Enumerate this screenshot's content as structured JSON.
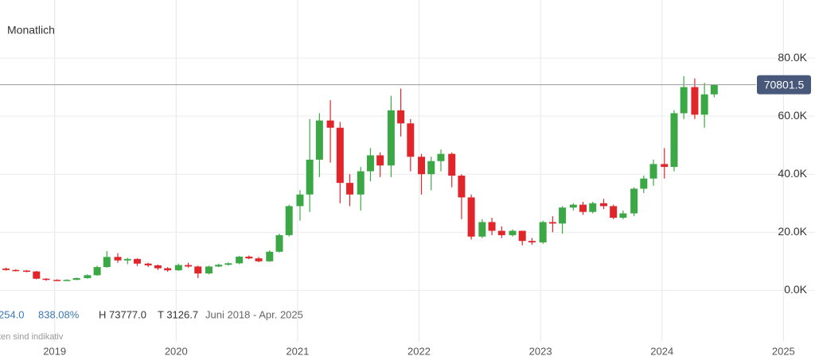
{
  "chart_data": {
    "type": "candlestick",
    "title": "Monatlich",
    "stats": [
      "254.0",
      "838.08%",
      "H 73777.0",
      "T 3126.7",
      "Juni 2018 - Apr. 2025"
    ],
    "note": "ten sind indikativ",
    "last_price": 70801.5,
    "last_price_label": "70801.5",
    "up_color": "#3ba845",
    "down_color": "#e0262b",
    "grid": true,
    "xlim": [
      2018.55,
      2025.26
    ],
    "xticks": [
      2019,
      2020,
      2021,
      2022,
      2023,
      2024,
      2025
    ],
    "ylim": [
      -24000,
      100000
    ],
    "yticks": [
      {
        "value": 0,
        "label": "0.0K"
      },
      {
        "value": 20000,
        "label": "20.0K"
      },
      {
        "value": 40000,
        "label": "40.0K"
      },
      {
        "value": 60000,
        "label": "60.0K"
      },
      {
        "value": 80000,
        "label": "80.0K"
      }
    ],
    "x": [
      2018.6,
      2018.68,
      2018.77,
      2018.85,
      2018.93,
      2019.02,
      2019.1,
      2019.18,
      2019.27,
      2019.35,
      2019.43,
      2019.52,
      2019.6,
      2019.68,
      2019.77,
      2019.85,
      2019.93,
      2020.02,
      2020.1,
      2020.18,
      2020.27,
      2020.35,
      2020.43,
      2020.52,
      2020.6,
      2020.68,
      2020.77,
      2020.85,
      2020.93,
      2021.02,
      2021.1,
      2021.18,
      2021.27,
      2021.35,
      2021.43,
      2021.52,
      2021.6,
      2021.68,
      2021.77,
      2021.85,
      2021.93,
      2022.02,
      2022.1,
      2022.18,
      2022.27,
      2022.35,
      2022.43,
      2022.52,
      2022.6,
      2022.68,
      2022.77,
      2022.85,
      2022.93,
      2023.02,
      2023.1,
      2023.18,
      2023.27,
      2023.35,
      2023.43,
      2023.52,
      2023.6,
      2023.68,
      2023.77,
      2023.85,
      2023.93,
      2024.02,
      2024.1,
      2024.18,
      2024.27,
      2024.35,
      2024.43
    ],
    "open": [
      7500,
      7000,
      6800,
      6500,
      4000,
      3600,
      3400,
      3600,
      4200,
      5200,
      8000,
      11500,
      10300,
      10800,
      9200,
      8600,
      7600,
      6900,
      8700,
      8200,
      5800,
      8200,
      8800,
      9300,
      11600,
      11000,
      10000,
      13300,
      19000,
      29000,
      33000,
      45000,
      58500,
      56000,
      37000,
      33000,
      41000,
      46500,
      43000,
      62000,
      57500,
      46000,
      40000,
      44500,
      47000,
      39500,
      32000,
      18500,
      23500,
      20500,
      19000,
      20500,
      17000,
      16500,
      23500,
      23000,
      28500,
      29500,
      27000,
      30000,
      29000,
      25000,
      26500,
      35000,
      38500,
      43500,
      42500,
      61000,
      70000,
      60500,
      67500
    ],
    "high": [
      7800,
      7300,
      7000,
      6700,
      4200,
      3800,
      3800,
      4400,
      5500,
      8500,
      13500,
      12800,
      11200,
      11000,
      9500,
      8900,
      8000,
      9200,
      9500,
      8500,
      8500,
      9200,
      9600,
      11800,
      12000,
      11500,
      13800,
      19500,
      29500,
      34500,
      59000,
      61000,
      65500,
      58000,
      40000,
      42500,
      49000,
      47500,
      67000,
      69500,
      59000,
      47000,
      46000,
      48500,
      47500,
      40000,
      33000,
      24500,
      25000,
      22000,
      21000,
      20500,
      18000,
      24000,
      25500,
      29000,
      30000,
      30500,
      30500,
      31500,
      29500,
      27500,
      35500,
      39500,
      45000,
      49000,
      62000,
      73777,
      73000,
      71500,
      71000
    ],
    "low": [
      6800,
      6500,
      6200,
      3800,
      3300,
      3200,
      3300,
      3500,
      4000,
      5000,
      7800,
      9500,
      9000,
      8400,
      8000,
      7000,
      6400,
      6700,
      7800,
      4200,
      5500,
      8000,
      8500,
      9000,
      10700,
      9700,
      9800,
      13000,
      18500,
      24000,
      27000,
      39000,
      44000,
      30000,
      29000,
      27500,
      37500,
      39000,
      39000,
      53000,
      41000,
      33000,
      34500,
      41000,
      35500,
      24500,
      17500,
      18000,
      19000,
      18000,
      18500,
      15500,
      15700,
      16000,
      20000,
      19500,
      27500,
      26000,
      26500,
      28000,
      24500,
      24500,
      25500,
      33500,
      36000,
      38500,
      41000,
      59000,
      59000,
      56000,
      66500
    ],
    "close": [
      7000,
      6800,
      6500,
      4000,
      3600,
      3400,
      3600,
      4200,
      5200,
      8000,
      11500,
      10300,
      10800,
      9200,
      8600,
      7600,
      6900,
      8700,
      8200,
      5800,
      8200,
      8800,
      9300,
      11600,
      11000,
      10000,
      13300,
      19000,
      29000,
      33000,
      45000,
      58500,
      56000,
      37000,
      33000,
      41000,
      46500,
      43000,
      62000,
      57500,
      46000,
      40000,
      44500,
      47000,
      39500,
      32000,
      18500,
      23500,
      20500,
      19000,
      20500,
      17000,
      16500,
      23500,
      23000,
      28500,
      29500,
      27000,
      30000,
      29000,
      25000,
      26500,
      35000,
      38500,
      43500,
      42500,
      61000,
      70000,
      60500,
      67500,
      70801.5
    ]
  }
}
